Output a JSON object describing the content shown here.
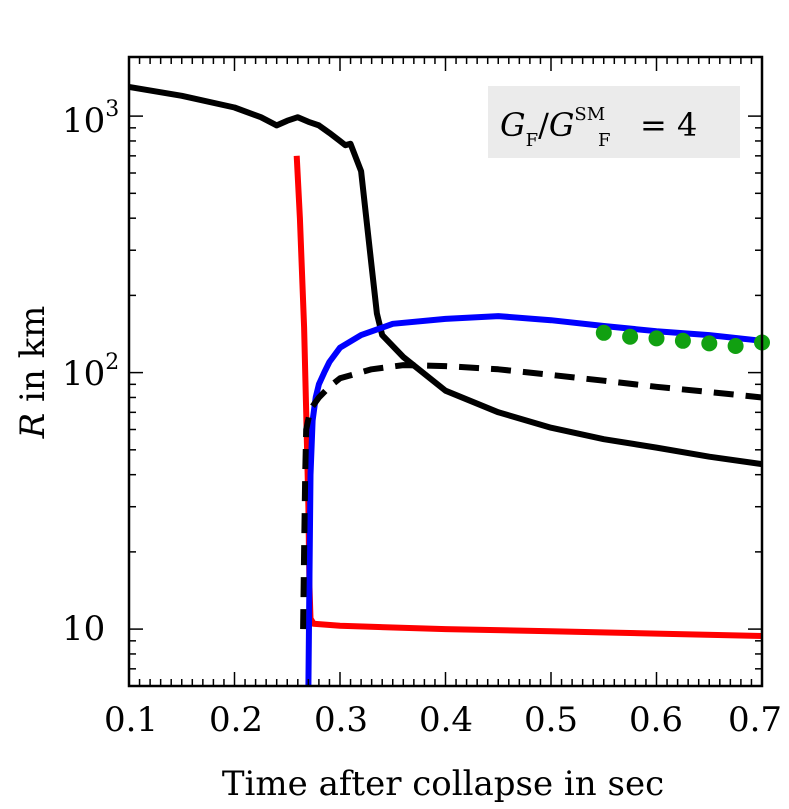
{
  "chart_data": {
    "type": "line",
    "xlabel": "Time after collapse in sec",
    "ylabel_italic": "R",
    "ylabel_rest": " in km",
    "xlim": [
      0.1,
      0.7
    ],
    "ylim": [
      6,
      1700
    ],
    "yscale": "log",
    "grid": false,
    "xticks": [
      0.1,
      0.2,
      0.3,
      0.4,
      0.5,
      0.6,
      0.7
    ],
    "xtick_labels": [
      "0.1",
      "0.2",
      "0.3",
      "0.4",
      "0.5",
      "0.6",
      "0.7"
    ],
    "ytick_labels": [
      {
        "value": 10,
        "base": "10",
        "exp": ""
      },
      {
        "value": 100,
        "base": "10",
        "exp": "2"
      },
      {
        "value": 1000,
        "base": "10",
        "exp": "3"
      }
    ],
    "annotation": {
      "placement": "top-right",
      "G": "G",
      "F": "F",
      "SM": "SM",
      "equals": "= 4"
    },
    "series": [
      {
        "color": "#000000",
        "style": "solid",
        "x": [
          0.1,
          0.15,
          0.2,
          0.225,
          0.24,
          0.25,
          0.26,
          0.27,
          0.28,
          0.29,
          0.3,
          0.305,
          0.31,
          0.32,
          0.33,
          0.335,
          0.34,
          0.36,
          0.4,
          0.45,
          0.5,
          0.55,
          0.6,
          0.65,
          0.7
        ],
        "y": [
          1300,
          1200,
          1080,
          990,
          920,
          960,
          990,
          950,
          920,
          860,
          800,
          770,
          780,
          610,
          260,
          170,
          140,
          115,
          85,
          70,
          61,
          55,
          51,
          47,
          44
        ]
      },
      {
        "color": "#ff0000",
        "style": "solid",
        "x": [
          0.259,
          0.262,
          0.266,
          0.268,
          0.27,
          0.271,
          0.272,
          0.275,
          0.3,
          0.4,
          0.5,
          0.6,
          0.7
        ],
        "y": [
          700,
          400,
          150,
          70,
          30,
          15,
          11,
          10.5,
          10.3,
          10,
          9.8,
          9.6,
          9.4
        ]
      },
      {
        "color": "#0000ff",
        "style": "solid",
        "x": [
          0.27,
          0.271,
          0.272,
          0.274,
          0.277,
          0.28,
          0.285,
          0.29,
          0.3,
          0.32,
          0.35,
          0.4,
          0.45,
          0.5,
          0.55,
          0.6,
          0.65,
          0.7
        ],
        "y": [
          6,
          15,
          40,
          65,
          80,
          90,
          100,
          110,
          125,
          140,
          155,
          162,
          166,
          160,
          152,
          145,
          140,
          133
        ]
      },
      {
        "color": "#000000",
        "style": "dashed",
        "x": [
          0.265,
          0.266,
          0.267,
          0.268,
          0.272,
          0.28,
          0.29,
          0.3,
          0.33,
          0.36,
          0.4,
          0.45,
          0.5,
          0.55,
          0.6,
          0.65,
          0.7
        ],
        "y": [
          10,
          20,
          40,
          60,
          72,
          80,
          88,
          95,
          103,
          107,
          106,
          103,
          98,
          93,
          88,
          84,
          80
        ]
      },
      {
        "color": "#11a011",
        "style": "dots",
        "x": [
          0.55,
          0.575,
          0.6,
          0.625,
          0.65,
          0.675,
          0.7
        ],
        "y": [
          143,
          138,
          136,
          133,
          130,
          127,
          131
        ]
      }
    ]
  }
}
